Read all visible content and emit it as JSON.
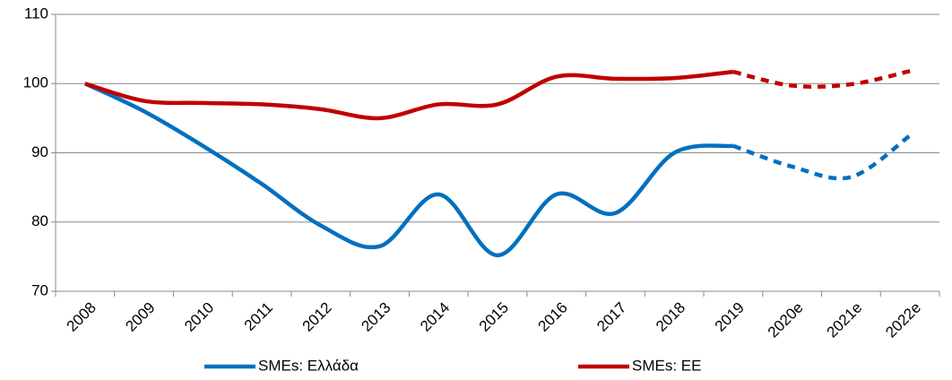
{
  "chart_data": {
    "type": "line",
    "categories": [
      "2008",
      "2009",
      "2010",
      "2011",
      "2012",
      "2013",
      "2014",
      "2015",
      "2016",
      "2017",
      "2018",
      "2019",
      "2020e",
      "2021e",
      "2022e"
    ],
    "series": [
      {
        "name": "SMEs: Ελλάδα",
        "color": "#0070c0",
        "values": [
          100,
          96,
          91,
          85.5,
          79.5,
          76.5,
          84,
          75.2,
          84,
          81.3,
          90,
          91,
          88,
          86.5,
          92.5
        ]
      },
      {
        "name": "SMEs: ΕΕ",
        "color": "#c00000",
        "values": [
          100,
          97.5,
          97.2,
          97,
          96.3,
          95,
          97,
          97,
          101,
          100.7,
          100.8,
          101.7,
          99.7,
          99.9,
          101.8
        ]
      }
    ],
    "dash_start_index": 11,
    "ylim": [
      70,
      110
    ],
    "yticks": [
      70,
      80,
      90,
      100,
      110
    ],
    "grid": true,
    "legend": "bottom"
  }
}
